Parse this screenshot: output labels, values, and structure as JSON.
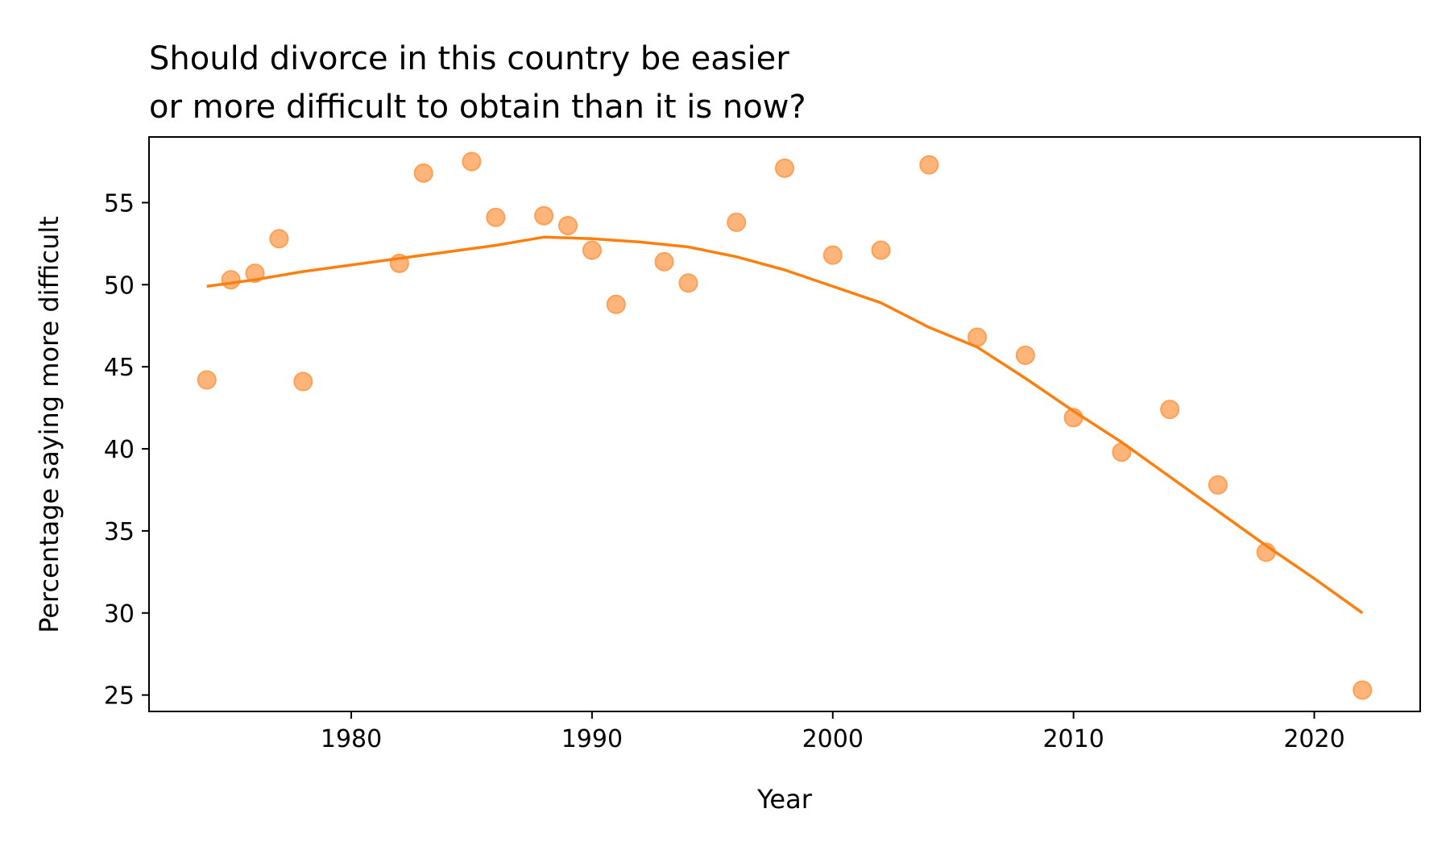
{
  "chart_data": {
    "type": "scatter",
    "title_lines": [
      "Should divorce in this country be easier",
      "or more difficult to obtain than it is now?"
    ],
    "xlabel": "Year",
    "ylabel": "Percentage saying more difficult",
    "xlim": [
      1971.6,
      2024.4
    ],
    "ylim": [
      24.0,
      59.0
    ],
    "xticks": [
      1980,
      1990,
      2000,
      2010,
      2020
    ],
    "yticks": [
      25,
      30,
      35,
      40,
      45,
      50,
      55
    ],
    "grid": false,
    "legend": "none",
    "colors": {
      "points_fill": "#ffb47a",
      "points_edge": "#ff9f55",
      "trend_line": "#ff7f0e",
      "axes": "#000000"
    },
    "points": [
      {
        "x": 1974,
        "y": 44.2
      },
      {
        "x": 1975,
        "y": 50.3
      },
      {
        "x": 1976,
        "y": 50.7
      },
      {
        "x": 1977,
        "y": 52.8
      },
      {
        "x": 1978,
        "y": 44.1
      },
      {
        "x": 1982,
        "y": 51.3
      },
      {
        "x": 1983,
        "y": 56.8
      },
      {
        "x": 1985,
        "y": 57.5
      },
      {
        "x": 1986,
        "y": 54.1
      },
      {
        "x": 1988,
        "y": 54.2
      },
      {
        "x": 1989,
        "y": 53.6
      },
      {
        "x": 1990,
        "y": 52.1
      },
      {
        "x": 1991,
        "y": 48.8
      },
      {
        "x": 1993,
        "y": 51.4
      },
      {
        "x": 1994,
        "y": 50.1
      },
      {
        "x": 1996,
        "y": 53.8
      },
      {
        "x": 1998,
        "y": 57.1
      },
      {
        "x": 2000,
        "y": 51.8
      },
      {
        "x": 2002,
        "y": 52.1
      },
      {
        "x": 2004,
        "y": 57.3
      },
      {
        "x": 2006,
        "y": 46.8
      },
      {
        "x": 2008,
        "y": 45.7
      },
      {
        "x": 2010,
        "y": 41.9
      },
      {
        "x": 2012,
        "y": 39.8
      },
      {
        "x": 2014,
        "y": 42.4
      },
      {
        "x": 2016,
        "y": 37.8
      },
      {
        "x": 2018,
        "y": 33.7
      },
      {
        "x": 2022,
        "y": 25.3
      }
    ],
    "trend": [
      {
        "x": 1974,
        "y": 49.9
      },
      {
        "x": 1976,
        "y": 50.3
      },
      {
        "x": 1978,
        "y": 50.8
      },
      {
        "x": 1980,
        "y": 51.2
      },
      {
        "x": 1982,
        "y": 51.6
      },
      {
        "x": 1984,
        "y": 52.0
      },
      {
        "x": 1986,
        "y": 52.4
      },
      {
        "x": 1988,
        "y": 52.9
      },
      {
        "x": 1990,
        "y": 52.8
      },
      {
        "x": 1992,
        "y": 52.6
      },
      {
        "x": 1994,
        "y": 52.3
      },
      {
        "x": 1996,
        "y": 51.7
      },
      {
        "x": 1998,
        "y": 50.9
      },
      {
        "x": 2000,
        "y": 49.9
      },
      {
        "x": 2002,
        "y": 48.9
      },
      {
        "x": 2004,
        "y": 47.4
      },
      {
        "x": 2006,
        "y": 46.2
      },
      {
        "x": 2008,
        "y": 44.3
      },
      {
        "x": 2010,
        "y": 42.3
      },
      {
        "x": 2012,
        "y": 40.4
      },
      {
        "x": 2014,
        "y": 38.3
      },
      {
        "x": 2016,
        "y": 36.2
      },
      {
        "x": 2018,
        "y": 34.1
      },
      {
        "x": 2020,
        "y": 32.1
      },
      {
        "x": 2022,
        "y": 30.0
      }
    ]
  }
}
